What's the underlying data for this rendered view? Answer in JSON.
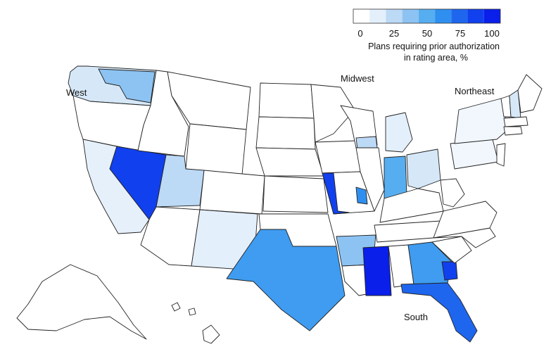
{
  "legend": {
    "title_line1": "Plans requiring prior authorization",
    "title_line2": "in rating area, %",
    "ticks": [
      "0",
      "25",
      "50",
      "75",
      "100"
    ],
    "bins": [
      "#ffffff",
      "#e3effb",
      "#bcd9f5",
      "#8cc3f2",
      "#56aef0",
      "#2f8ff0",
      "#1f66ef",
      "#1140ee",
      "#0a1fea"
    ]
  },
  "regions": {
    "west": "West",
    "midwest": "Midwest",
    "northeast": "Northeast",
    "south": "South"
  }
}
